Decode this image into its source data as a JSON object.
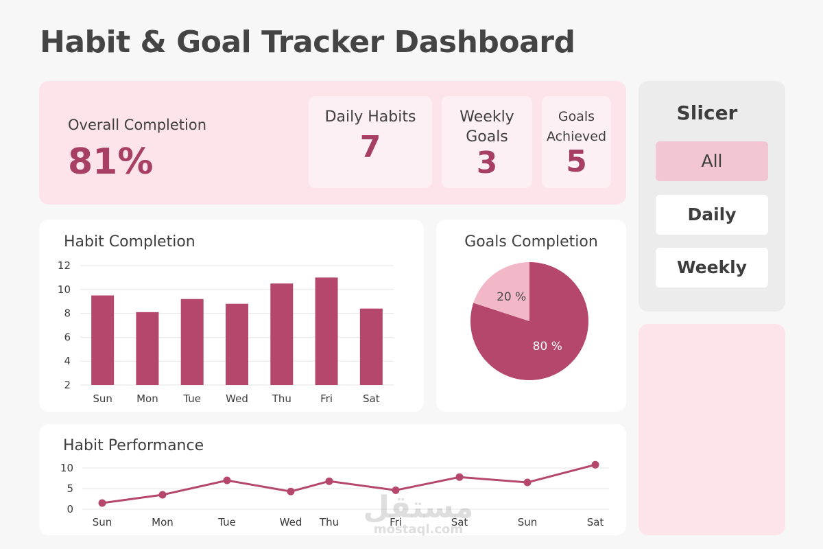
{
  "page": {
    "title": "Habit & Goal Tracker Dashboard"
  },
  "kpis": {
    "overall_label": "Overall Completion",
    "overall_value": "81%",
    "daily_habits_label": "Daily Habits",
    "daily_habits_value": "7",
    "weekly_goals_label_1": "Weekly",
    "weekly_goals_label_2": "Goals",
    "weekly_goals_value": "3",
    "goals_achieved_label_1": "Goals",
    "goals_achieved_label_2": "Achieved",
    "goals_achieved_value": "5"
  },
  "slicer": {
    "title": "Slicer",
    "options": [
      "All",
      "Daily",
      "Weekly"
    ],
    "selected": "All"
  },
  "colors": {
    "accent": "#b5476c",
    "accent_light": "#f2b8c8",
    "panel_pink": "#fde4ea",
    "card_pink": "#fdf0f4",
    "slicer_active": "#f2c7d3"
  },
  "watermark": {
    "text_ar": "مستقل",
    "url": "mostaql.com"
  },
  "chart_data": [
    {
      "type": "bar",
      "title": "Habit Completion",
      "categories": [
        "Sun",
        "Mon",
        "Tue",
        "Wed",
        "Thu",
        "Fri",
        "Sat"
      ],
      "values": [
        9.5,
        8.1,
        9.2,
        8.8,
        10.5,
        11,
        8.4
      ],
      "yticks": [
        2,
        4,
        6,
        8,
        10,
        12
      ],
      "ylim": [
        2,
        12
      ],
      "grid": true
    },
    {
      "type": "pie",
      "title": "Goals Completion",
      "slices": [
        {
          "label": "80 %",
          "value": 80,
          "color": "#b5476c"
        },
        {
          "label": "20 %",
          "value": 20,
          "color": "#f2b8c8"
        }
      ]
    },
    {
      "type": "line",
      "title": "Habit Performance",
      "categories": [
        "Sun",
        "Mon",
        "Tue",
        "Wed",
        "Thu",
        "Fri",
        "Sat",
        "Sun",
        "Sat"
      ],
      "values": [
        1.5,
        3.5,
        7,
        4.3,
        6.8,
        4.6,
        7.8,
        6.5,
        10.8
      ],
      "yticks": [
        0,
        5,
        10
      ],
      "ylim": [
        0,
        10
      ],
      "grid": true
    }
  ]
}
